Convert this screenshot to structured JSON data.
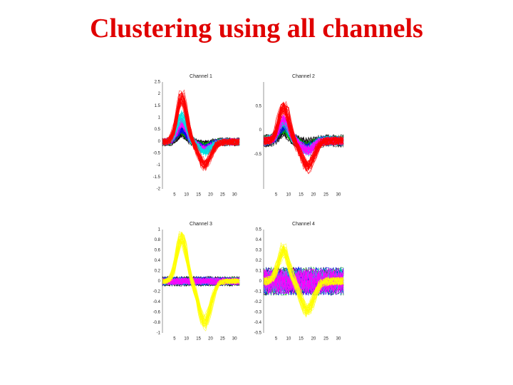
{
  "title": "Clustering using all channels",
  "panels": [
    {
      "title": "Channel 1",
      "yticks": [
        "2.5",
        "2",
        "1.5",
        "1",
        "0.5",
        "0",
        "-0.5",
        "-1",
        "-1.5",
        "-2"
      ],
      "xticks": [
        "5",
        "10",
        "15",
        "20",
        "25",
        "30"
      ]
    },
    {
      "title": "Channel 2",
      "yticks": [
        "0.5",
        "0",
        "-0.5"
      ],
      "xticks": [
        "5",
        "10",
        "15",
        "20",
        "25",
        "30"
      ]
    },
    {
      "title": "Channel 3",
      "yticks": [
        "1",
        "0.8",
        "0.6",
        "0.4",
        "0.2",
        "0",
        "-0.2",
        "-0.4",
        "-0.6",
        "-0.8",
        "-1"
      ],
      "xticks": [
        "5",
        "10",
        "15",
        "20",
        "25",
        "30"
      ]
    },
    {
      "title": "Channel 4",
      "yticks": [
        "0.5",
        "0.4",
        "0.3",
        "0.2",
        "0.1",
        "0",
        "-0.1",
        "-0.2",
        "-0.3",
        "-0.4",
        "-0.5"
      ],
      "xticks": [
        "5",
        "10",
        "15",
        "20",
        "25",
        "30"
      ]
    }
  ]
}
